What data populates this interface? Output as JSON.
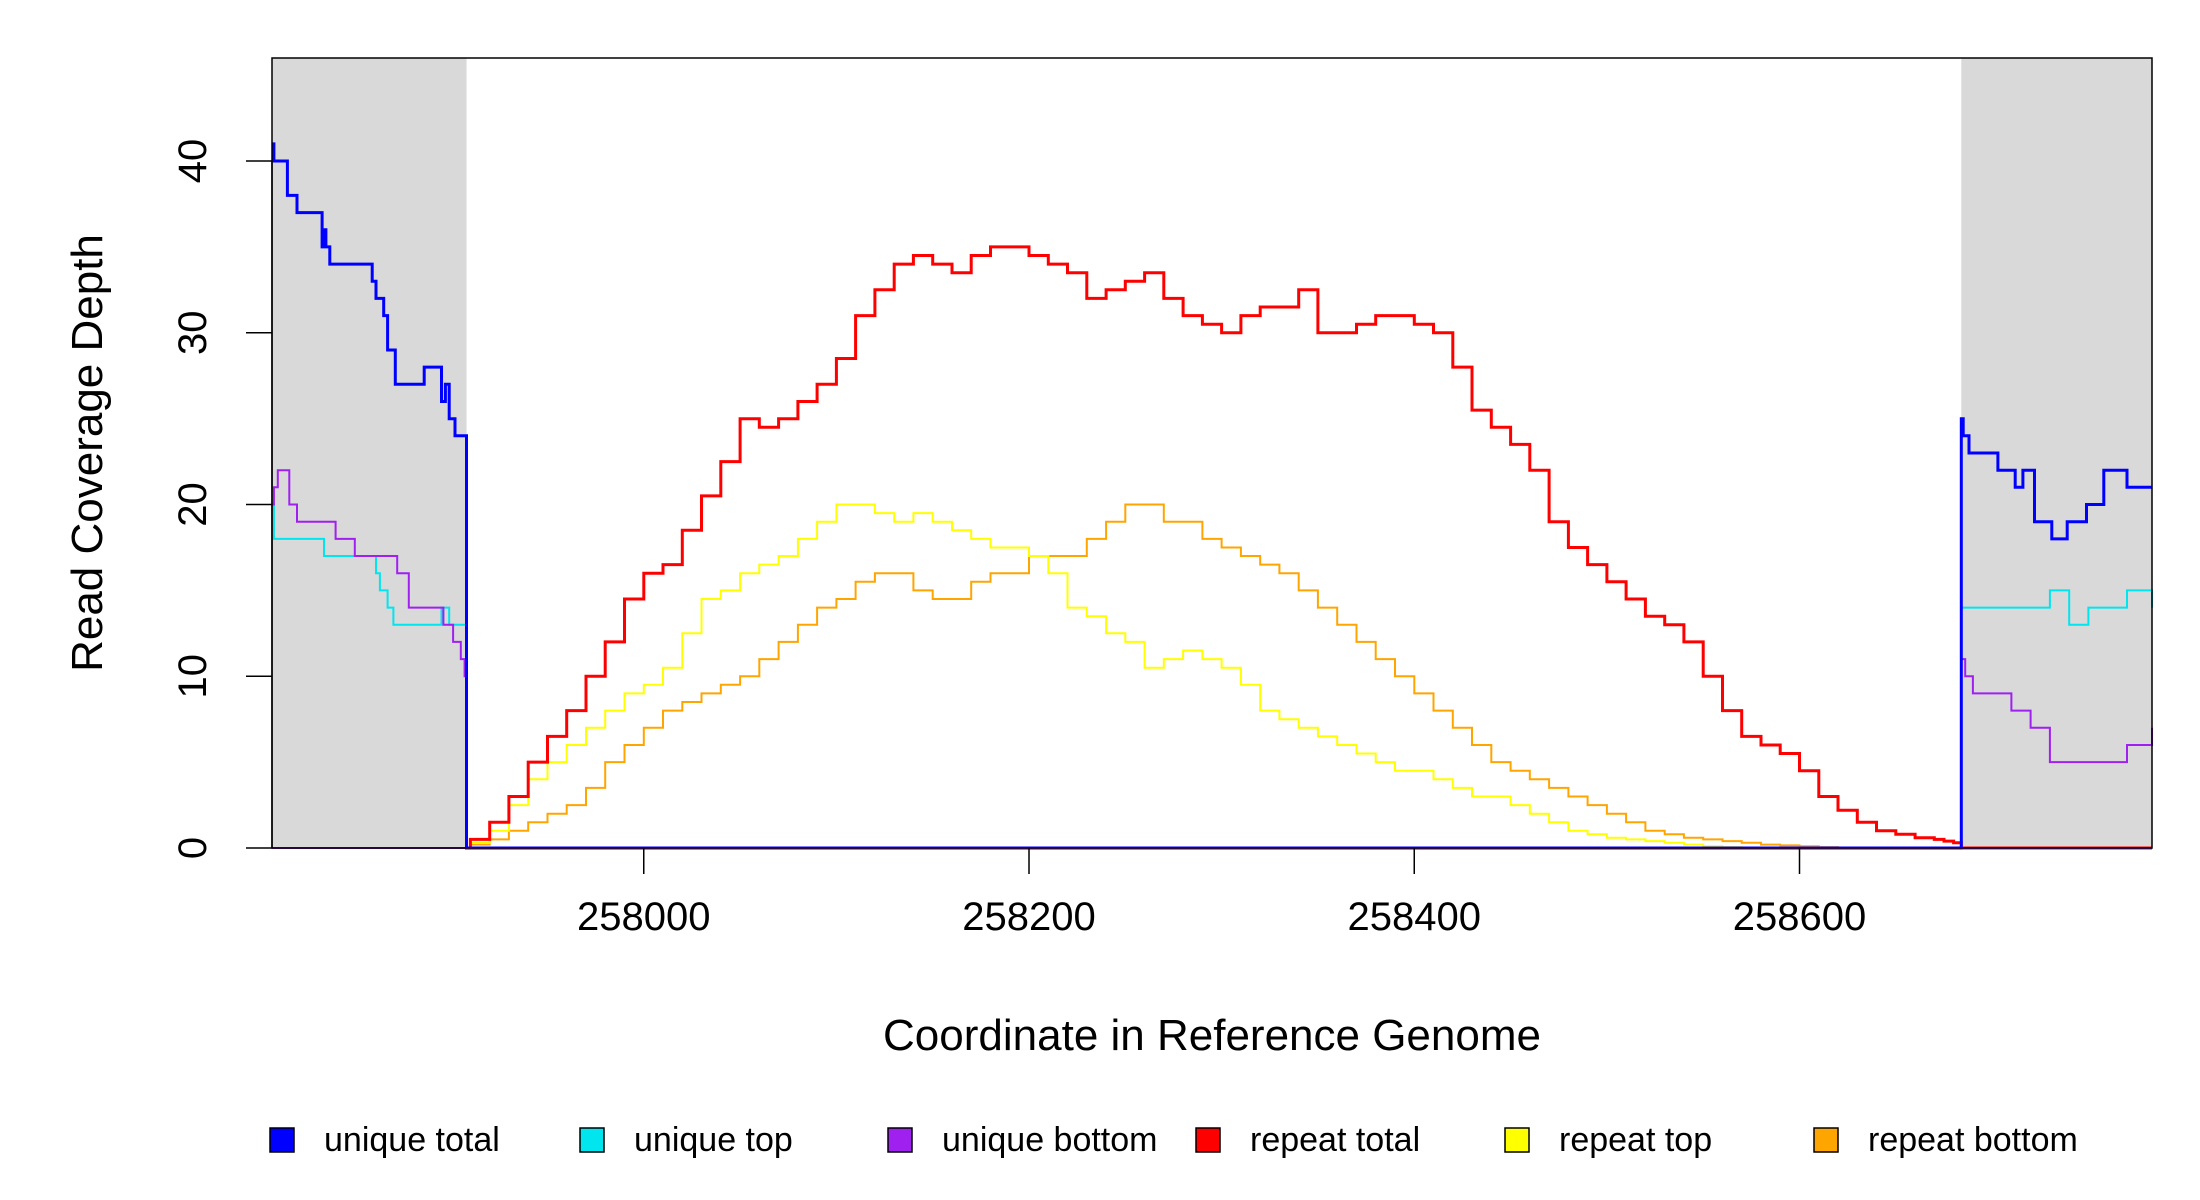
{
  "chart_data": {
    "type": "line",
    "xlabel": "Coordinate in Reference Genome",
    "ylabel": "Read Coverage Depth",
    "xlim": [
      257807,
      258783
    ],
    "ylim": [
      0,
      46
    ],
    "x_ticks": [
      258000,
      258200,
      258400,
      258600
    ],
    "y_ticks": [
      0,
      10,
      20,
      30,
      40
    ],
    "shaded_regions": [
      [
        257807,
        257908
      ],
      [
        258684,
        258783
      ]
    ],
    "colors": {
      "unique total": "#0000ff",
      "unique top": "#00e5ee",
      "unique bottom": "#a020f0",
      "repeat total": "#ff0000",
      "repeat top": "#ffff00",
      "repeat bottom": "#ffa500",
      "shade": "#d9d9d9"
    },
    "legend": [
      "unique total",
      "unique top",
      "unique bottom",
      "repeat total",
      "repeat top",
      "repeat bottom"
    ],
    "legend_position": "bottom",
    "series": [
      {
        "name": "unique total",
        "x": [
          257807,
          257808,
          257809,
          257815,
          257820,
          257833,
          257834,
          257835,
          257837,
          257845,
          257859,
          257861,
          257865,
          257867,
          257871,
          257878,
          257886,
          257895,
          257897,
          257899,
          257902,
          257905,
          257907,
          257908,
          257909,
          258684,
          258685,
          258688,
          258703,
          258712,
          258716,
          258722,
          258731,
          258739,
          258745,
          258749,
          258758,
          258770,
          258783
        ],
        "y": [
          41,
          40,
          40,
          38,
          37,
          35,
          36,
          35,
          34,
          34,
          33,
          32,
          31,
          29,
          27,
          27,
          28,
          26,
          27,
          25,
          24,
          24,
          24,
          0,
          0,
          25,
          24,
          23,
          22,
          21,
          22,
          19,
          18,
          19,
          19,
          20,
          22,
          21,
          21
        ]
      },
      {
        "name": "unique top",
        "x": [
          257807,
          257808,
          257820,
          257834,
          257850,
          257861,
          257863,
          257867,
          257870,
          257879,
          257895,
          257899,
          257903,
          257907,
          257908,
          257909,
          258684,
          258685,
          258730,
          258740,
          258750,
          258770,
          258783
        ],
        "y": [
          20,
          18,
          18,
          17,
          17,
          16,
          15,
          14,
          13,
          13,
          14,
          13,
          13,
          13,
          0,
          0,
          14,
          14,
          15,
          13,
          14,
          15,
          14
        ]
      },
      {
        "name": "unique bottom",
        "x": [
          257807,
          257808,
          257810,
          257816,
          257820,
          257836,
          257840,
          257850,
          257864,
          257872,
          257878,
          257888,
          257896,
          257901,
          257905,
          257907,
          257908,
          257909,
          258684,
          258686,
          258690,
          258700,
          258710,
          258720,
          258730,
          258755,
          258770,
          258783
        ],
        "y": [
          20,
          21,
          22,
          20,
          19,
          19,
          18,
          17,
          17,
          16,
          14,
          14,
          13,
          12,
          11,
          10,
          0,
          0,
          11,
          10,
          9,
          9,
          8,
          7,
          5,
          5,
          6,
          7
        ]
      },
      {
        "name": "repeat total",
        "x": [
          257908,
          257910,
          257920,
          257930,
          257940,
          257950,
          257960,
          257970,
          257980,
          257990,
          258000,
          258010,
          258020,
          258030,
          258040,
          258050,
          258060,
          258070,
          258080,
          258090,
          258100,
          258110,
          258120,
          258130,
          258140,
          258150,
          258160,
          258170,
          258180,
          258190,
          258200,
          258210,
          258220,
          258230,
          258240,
          258250,
          258260,
          258270,
          258280,
          258290,
          258300,
          258310,
          258320,
          258330,
          258340,
          258350,
          258360,
          258370,
          258380,
          258390,
          258400,
          258410,
          258420,
          258430,
          258440,
          258450,
          258460,
          258470,
          258480,
          258490,
          258500,
          258510,
          258520,
          258530,
          258540,
          258550,
          258560,
          258570,
          258580,
          258590,
          258600,
          258610,
          258620,
          258630,
          258640,
          258650,
          258660,
          258670,
          258675,
          258680,
          258684
        ],
        "y": [
          0,
          0.5,
          1.5,
          3,
          5,
          6.5,
          8,
          10,
          12,
          14.5,
          16,
          16.5,
          18.5,
          20.5,
          22.5,
          25,
          24.5,
          25,
          26,
          27,
          28.5,
          31,
          32.5,
          34,
          34.5,
          34,
          33.5,
          34.5,
          35,
          35,
          34.5,
          34,
          33.5,
          32,
          32.5,
          33,
          33.5,
          32,
          31,
          30.5,
          30,
          31,
          31.5,
          31.5,
          32.5,
          30,
          30,
          30.5,
          31,
          31,
          30.5,
          30,
          28,
          25.5,
          24.5,
          23.5,
          22,
          19,
          17.5,
          16.5,
          15.5,
          14.5,
          13.5,
          13,
          12,
          10,
          8,
          6.5,
          6,
          5.5,
          4.5,
          3,
          2.2,
          1.5,
          1,
          0.8,
          0.6,
          0.5,
          0.4,
          0.3,
          0
        ]
      },
      {
        "name": "repeat top",
        "x": [
          257908,
          257910,
          257920,
          257930,
          257940,
          257950,
          257960,
          257970,
          257980,
          257990,
          258000,
          258010,
          258020,
          258030,
          258040,
          258050,
          258060,
          258070,
          258080,
          258090,
          258100,
          258110,
          258120,
          258130,
          258140,
          258150,
          258160,
          258170,
          258180,
          258190,
          258200,
          258210,
          258220,
          258230,
          258240,
          258250,
          258260,
          258270,
          258280,
          258290,
          258300,
          258310,
          258320,
          258330,
          258340,
          258350,
          258360,
          258370,
          258380,
          258390,
          258400,
          258410,
          258420,
          258430,
          258440,
          258450,
          258460,
          258470,
          258480,
          258490,
          258500,
          258510,
          258520,
          258530,
          258540,
          258550,
          258560,
          258570,
          258580,
          258590,
          258600,
          258610,
          258620,
          258630,
          258640,
          258650,
          258660,
          258670,
          258675,
          258680,
          258684
        ],
        "y": [
          0,
          0.3,
          1,
          2.5,
          4,
          5,
          6,
          7,
          8,
          9,
          9.5,
          10.5,
          12.5,
          14.5,
          15,
          16,
          16.5,
          17,
          18,
          19,
          20,
          20,
          19.5,
          19,
          19.5,
          19,
          18.5,
          18,
          17.5,
          17.5,
          17,
          16,
          14,
          13.5,
          12.5,
          12,
          10.5,
          11,
          11.5,
          11,
          10.5,
          9.5,
          8,
          7.5,
          7,
          6.5,
          6,
          5.5,
          5,
          4.5,
          4.5,
          4,
          3.5,
          3,
          3,
          2.5,
          2,
          1.5,
          1,
          0.8,
          0.6,
          0.5,
          0.4,
          0.3,
          0.2,
          0.1,
          0.05,
          0.02,
          0.01,
          0,
          0,
          0,
          0,
          0,
          0,
          0,
          0,
          0,
          0,
          0,
          0
        ]
      },
      {
        "name": "repeat bottom",
        "x": [
          257908,
          257910,
          257920,
          257930,
          257940,
          257950,
          257960,
          257970,
          257980,
          257990,
          258000,
          258010,
          258020,
          258030,
          258040,
          258050,
          258060,
          258070,
          258080,
          258090,
          258100,
          258110,
          258120,
          258130,
          258140,
          258150,
          258160,
          258170,
          258180,
          258190,
          258200,
          258210,
          258220,
          258230,
          258240,
          258250,
          258260,
          258270,
          258280,
          258290,
          258300,
          258310,
          258320,
          258330,
          258340,
          258350,
          258360,
          258370,
          258380,
          258390,
          258400,
          258410,
          258420,
          258430,
          258440,
          258450,
          258460,
          258470,
          258480,
          258490,
          258500,
          258510,
          258520,
          258530,
          258540,
          258550,
          258560,
          258570,
          258580,
          258590,
          258600,
          258610,
          258620,
          258630,
          258640,
          258650,
          258660,
          258670,
          258675,
          258680,
          258684
        ],
        "y": [
          0,
          0.2,
          0.5,
          1,
          1.5,
          2,
          2.5,
          3.5,
          5,
          6,
          7,
          8,
          8.5,
          9,
          9.5,
          10,
          11,
          12,
          13,
          14,
          14.5,
          15.5,
          16,
          16,
          15,
          14.5,
          14.5,
          15.5,
          16,
          16,
          17,
          17,
          17,
          18,
          19,
          20,
          20,
          19,
          19,
          18,
          17.5,
          17,
          16.5,
          16,
          15,
          14,
          13,
          12,
          11,
          10,
          9,
          8,
          7,
          6,
          5,
          4.5,
          4,
          3.5,
          3,
          2.5,
          2,
          1.5,
          1,
          0.8,
          0.6,
          0.5,
          0.4,
          0.3,
          0.2,
          0.15,
          0.1,
          0.05,
          0.02,
          0.01,
          0,
          0,
          0,
          0,
          0,
          0,
          0
        ]
      }
    ]
  }
}
